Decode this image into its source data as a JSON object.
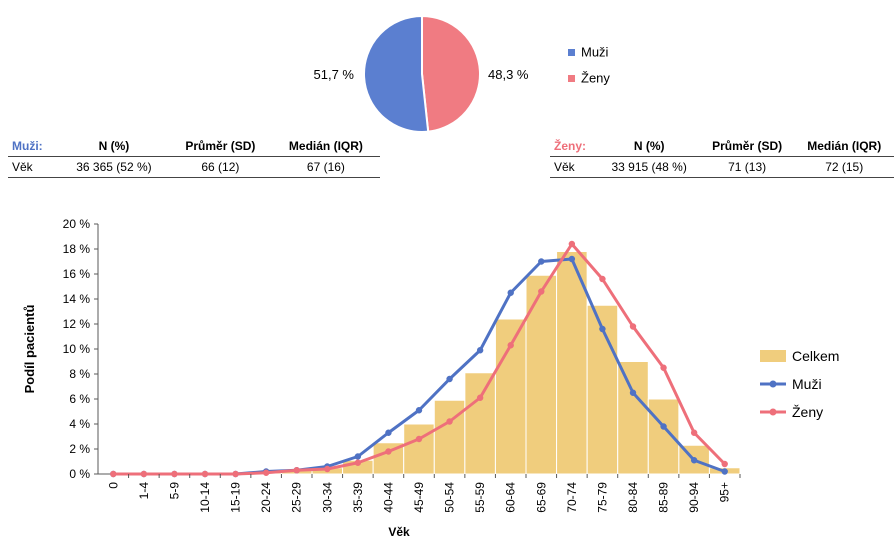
{
  "pie": {
    "slices": [
      {
        "name": "Muži",
        "value": 51.7,
        "label": "51,7 %",
        "color": "#5b7fd0"
      },
      {
        "name": "Ženy",
        "value": 48.3,
        "label": "48,3 %",
        "color": "#f07b82"
      }
    ]
  },
  "tables": {
    "muzi": {
      "group_label": "Muži:",
      "headers": [
        "N (%)",
        "Průměr (SD)",
        "Medián (IQR)"
      ],
      "row_label": "Věk",
      "values": [
        "36 365 (52 %)",
        "66 (12)",
        "67 (16)"
      ]
    },
    "zeny": {
      "group_label": "Ženy:",
      "headers": [
        "N (%)",
        "Průměr (SD)",
        "Medián (IQR)"
      ],
      "row_label": "Věk",
      "values": [
        "33 915 (48 %)",
        "71 (13)",
        "72 (15)"
      ]
    }
  },
  "chart_data": {
    "type": "bar",
    "xlabel": "Věk",
    "ylabel": "Podíl pacientů",
    "ylim": [
      0,
      20
    ],
    "yticks": [
      0,
      2,
      4,
      6,
      8,
      10,
      12,
      14,
      16,
      18,
      20
    ],
    "ytick_labels": [
      "0 %",
      "2 %",
      "4 %",
      "6 %",
      "8 %",
      "10 %",
      "12 %",
      "14 %",
      "16 %",
      "18 %",
      "20 %"
    ],
    "categories": [
      "0",
      "1-4",
      "5-9",
      "10-14",
      "15-19",
      "20-24",
      "25-29",
      "30-34",
      "35-39",
      "40-44",
      "45-49",
      "50-54",
      "55-59",
      "60-64",
      "65-69",
      "70-74",
      "75-79",
      "80-84",
      "85-89",
      "90-94",
      "95+"
    ],
    "legend_position": "right",
    "series": [
      {
        "name": "Celkem",
        "kind": "bar",
        "color": "#f0cd7d",
        "values": [
          0,
          0,
          0,
          0,
          0,
          0.2,
          0.3,
          0.5,
          1.1,
          2.5,
          4.0,
          5.9,
          8.1,
          12.4,
          15.9,
          17.8,
          13.5,
          9.0,
          6.0,
          2.3,
          0.5
        ]
      },
      {
        "name": "Muži",
        "kind": "line",
        "color": "#4f72c4",
        "values": [
          0,
          0,
          0,
          0,
          0,
          0.2,
          0.3,
          0.6,
          1.4,
          3.3,
          5.1,
          7.6,
          9.9,
          14.5,
          17.0,
          17.2,
          11.6,
          6.5,
          3.8,
          1.1,
          0.2
        ]
      },
      {
        "name": "Ženy",
        "kind": "line",
        "color": "#ee6f7a",
        "values": [
          0,
          0,
          0,
          0,
          0,
          0.1,
          0.3,
          0.4,
          0.9,
          1.8,
          2.8,
          4.2,
          6.1,
          10.3,
          14.6,
          18.4,
          15.6,
          11.8,
          8.5,
          3.3,
          0.8
        ]
      }
    ]
  }
}
